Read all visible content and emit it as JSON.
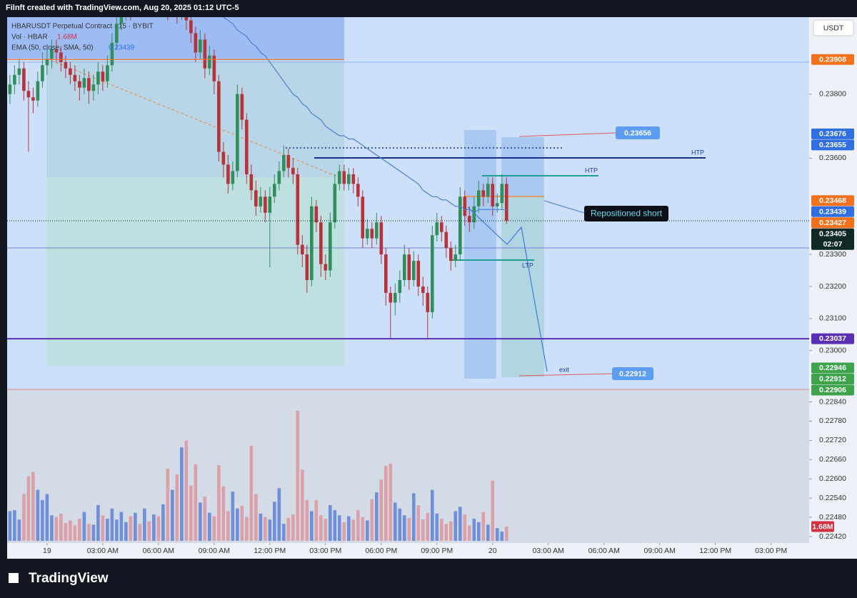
{
  "header": "Filnft created with TradingView.com, Aug 20, 2025 01:12 UTC-5",
  "footer_brand": "TradingView",
  "annotations": {
    "target_top": "0.23656",
    "target_bottom": "0.22912",
    "note": "Repositioned short",
    "htp_1": "HTP",
    "htp_2": "HTP",
    "ltp": "LTP",
    "exit": "exit"
  },
  "chart_data": {
    "type": "candlestick",
    "legend": {
      "symbol": "HBARUSDT Perpetual Contract · 15 · BYBIT",
      "volume": "Vol · HBAR",
      "ema": "EMA (50, close, SMA, 50)",
      "ema_value": "0.23439"
    },
    "currency": "USDT",
    "up_color": "#2f8f5b",
    "down_color": "#b8323a",
    "grid": false,
    "open": [
      0.238,
      0.2383,
      0.2386,
      0.2388,
      0.2381,
      0.2379,
      0.2378,
      0.2384,
      0.2389,
      0.2391,
      0.2394,
      0.2393,
      0.239,
      0.2388,
      0.2386,
      0.2384,
      0.2382,
      0.2385,
      0.2381,
      0.2383,
      0.2387,
      0.2384,
      0.2389,
      0.2396,
      0.2402,
      0.2405,
      0.2408,
      0.2406,
      0.241,
      0.2408,
      0.2412,
      0.2409,
      0.2411,
      0.2407,
      0.241,
      0.2406,
      0.2409,
      0.2405,
      0.2407,
      0.2403,
      0.2399,
      0.2393,
      0.2397,
      0.2388,
      0.2392,
      0.2384,
      0.2362,
      0.2358,
      0.2352,
      0.2356,
      0.238,
      0.2372,
      0.2355,
      0.235,
      0.2345,
      0.2348,
      0.2343,
      0.2348,
      0.2352,
      0.2356,
      0.2361,
      0.2357,
      0.2355,
      0.2333,
      0.233,
      0.2322,
      0.2345,
      0.234,
      0.2327,
      0.2325,
      0.234,
      0.2352,
      0.2356,
      0.2352,
      0.2355,
      0.2352,
      0.2348,
      0.2335,
      0.2338,
      0.2335,
      0.234,
      0.233,
      0.2318,
      0.2315,
      0.2318,
      0.2322,
      0.233,
      0.2322,
      0.2328,
      0.232,
      0.2318,
      0.2312,
      0.2336,
      0.234,
      0.2337,
      0.2332,
      0.2328,
      0.233,
      0.2348,
      0.2342,
      0.234,
      0.2345,
      0.235,
      0.2348,
      0.2352,
      0.2345,
      0.2346,
      0.2352
    ],
    "high": [
      0.2386,
      0.2389,
      0.2391,
      0.239,
      0.2384,
      0.2382,
      0.2387,
      0.2393,
      0.2394,
      0.2397,
      0.2397,
      0.2395,
      0.2392,
      0.239,
      0.2389,
      0.2386,
      0.2388,
      0.2387,
      0.2386,
      0.239,
      0.2389,
      0.2392,
      0.2399,
      0.2405,
      0.2408,
      0.2411,
      0.241,
      0.2413,
      0.2412,
      0.2415,
      0.2414,
      0.2414,
      0.2413,
      0.2413,
      0.2412,
      0.2412,
      0.2411,
      0.241,
      0.2409,
      0.2405,
      0.2401,
      0.24,
      0.2399,
      0.2395,
      0.2394,
      0.2386,
      0.2365,
      0.2361,
      0.2359,
      0.2383,
      0.2382,
      0.2374,
      0.2358,
      0.2353,
      0.2351,
      0.235,
      0.2351,
      0.2355,
      0.2359,
      0.2364,
      0.2363,
      0.236,
      0.2357,
      0.2336,
      0.2333,
      0.2348,
      0.2347,
      0.2342,
      0.233,
      0.2343,
      0.2355,
      0.2358,
      0.2358,
      0.2357,
      0.2357,
      0.2354,
      0.235,
      0.2341,
      0.234,
      0.2343,
      0.2342,
      0.2332,
      0.232,
      0.2321,
      0.2325,
      0.2333,
      0.2332,
      0.2331,
      0.233,
      0.2323,
      0.232,
      0.2339,
      0.2343,
      0.2342,
      0.2339,
      0.2334,
      0.2333,
      0.2351,
      0.235,
      0.2345,
      0.2348,
      0.2353,
      0.2352,
      0.2354,
      0.2354,
      0.2349,
      0.2355,
      0.2354
    ],
    "low": [
      0.2377,
      0.238,
      0.2383,
      0.2378,
      0.2362,
      0.2374,
      0.2376,
      0.2382,
      0.2386,
      0.2388,
      0.239,
      0.2387,
      0.2385,
      0.2383,
      0.2381,
      0.2378,
      0.238,
      0.2377,
      0.2378,
      0.238,
      0.2381,
      0.2382,
      0.2387,
      0.2394,
      0.24,
      0.2403,
      0.2403,
      0.2404,
      0.2405,
      0.2406,
      0.2406,
      0.2407,
      0.2404,
      0.2405,
      0.2403,
      0.2404,
      0.2402,
      0.2403,
      0.24,
      0.2396,
      0.239,
      0.2391,
      0.2385,
      0.2386,
      0.238,
      0.2359,
      0.2354,
      0.2349,
      0.235,
      0.2354,
      0.2369,
      0.2352,
      0.2347,
      0.2342,
      0.2343,
      0.234,
      0.2326,
      0.2346,
      0.235,
      0.2354,
      0.2354,
      0.2352,
      0.233,
      0.2326,
      0.2318,
      0.232,
      0.2337,
      0.2323,
      0.2322,
      0.2323,
      0.2338,
      0.235,
      0.235,
      0.235,
      0.2349,
      0.2345,
      0.2332,
      0.2333,
      0.2332,
      0.2333,
      0.2327,
      0.2314,
      0.2304,
      0.2311,
      0.2315,
      0.232,
      0.2319,
      0.232,
      0.2317,
      0.2314,
      0.2304,
      0.231,
      0.2334,
      0.2334,
      0.2329,
      0.2325,
      0.2326,
      0.2328,
      0.2339,
      0.2337,
      0.2338,
      0.2343,
      0.2345,
      0.2346,
      0.2342,
      0.2343,
      0.2344,
      0.23395
    ],
    "close": [
      0.2383,
      0.2386,
      0.2388,
      0.2381,
      0.2379,
      0.2378,
      0.2384,
      0.2389,
      0.2391,
      0.2394,
      0.2393,
      0.239,
      0.2388,
      0.2386,
      0.2384,
      0.2382,
      0.2385,
      0.2381,
      0.2383,
      0.2387,
      0.2384,
      0.2389,
      0.2396,
      0.2402,
      0.2405,
      0.2408,
      0.2406,
      0.241,
      0.2408,
      0.2412,
      0.2409,
      0.2411,
      0.2407,
      0.241,
      0.2406,
      0.2409,
      0.2405,
      0.2407,
      0.2403,
      0.2399,
      0.2393,
      0.2397,
      0.2388,
      0.2392,
      0.2384,
      0.2362,
      0.2358,
      0.2352,
      0.2356,
      0.238,
      0.2372,
      0.2355,
      0.235,
      0.2345,
      0.2348,
      0.2343,
      0.2348,
      0.2352,
      0.2356,
      0.2361,
      0.2357,
      0.2355,
      0.2333,
      0.233,
      0.2322,
      0.2345,
      0.234,
      0.2327,
      0.2325,
      0.234,
      0.2352,
      0.2356,
      0.2352,
      0.2355,
      0.2352,
      0.2348,
      0.2335,
      0.2338,
      0.2335,
      0.234,
      0.233,
      0.2318,
      0.2315,
      0.2318,
      0.2322,
      0.233,
      0.2322,
      0.2328,
      0.232,
      0.2318,
      0.2312,
      0.2336,
      0.234,
      0.2337,
      0.2332,
      0.2328,
      0.233,
      0.2348,
      0.2342,
      0.234,
      0.2345,
      0.235,
      0.2348,
      0.2352,
      0.2345,
      0.2346,
      0.2352,
      0.23405
    ],
    "ema": {
      "color": "#4a7fd4",
      "values": [
        null,
        null,
        null,
        null,
        null,
        null,
        null,
        null,
        null,
        null,
        null,
        null,
        null,
        null,
        null,
        null,
        null,
        null,
        null,
        null,
        null,
        null,
        null,
        null,
        null,
        null,
        null,
        null,
        null,
        null,
        null,
        null,
        null,
        null,
        null,
        null,
        null,
        null,
        null,
        null,
        null,
        null,
        null,
        null,
        null,
        null,
        0.2404,
        0.2403,
        0.2402,
        0.24,
        0.2399,
        0.2398,
        0.2396,
        0.2395,
        0.2393,
        0.2392,
        0.239,
        0.2388,
        0.2386,
        0.2384,
        0.2382,
        0.238,
        0.2379,
        0.2377,
        0.2376,
        0.2374,
        0.2373,
        0.2372,
        0.237,
        0.2369,
        0.2368,
        0.2367,
        0.2367,
        0.2366,
        0.2366,
        0.2365,
        0.2364,
        0.2363,
        0.2362,
        0.2361,
        0.236,
        0.2359,
        0.2358,
        0.2357,
        0.2356,
        0.2355,
        0.2354,
        0.2353,
        0.2352,
        0.235,
        0.2349,
        0.2348,
        0.2348,
        0.2347,
        0.2347,
        0.2346,
        0.2345,
        0.2345,
        0.2344,
        0.2344,
        0.2343,
        0.2344,
        0.2344,
        0.2344,
        0.2344,
        0.2344,
        0.2344,
        0.23439
      ]
    },
    "volume": {
      "up_color": "#6f8fd8",
      "down_color": "#dca0a8",
      "last_label": "1.68M",
      "last_color": "#d32f3f",
      "vlim": [
        0,
        20
      ],
      "values": [
        3.5,
        3.6,
        2.5,
        5.5,
        7.6,
        8.1,
        6.0,
        4.8,
        5.5,
        3.0,
        2.8,
        3.2,
        2.1,
        2.4,
        1.8,
        2.6,
        3.4,
        2.0,
        1.9,
        4.2,
        3.0,
        2.6,
        3.8,
        2.5,
        3.4,
        2.2,
        2.9,
        3.3,
        2.0,
        3.8,
        2.3,
        3.1,
        2.9,
        4.3,
        8.5,
        6.0,
        7.8,
        11.0,
        11.8,
        6.5,
        9.0,
        4.5,
        5.2,
        3.3,
        2.9,
        8.9,
        6.4,
        3.5,
        5.8,
        3.8,
        4.1,
        2.8,
        11.2,
        5.5,
        3.2,
        2.8,
        2.5,
        4.6,
        6.2,
        2.0,
        2.7,
        3.1,
        15.3,
        8.4,
        4.8,
        3.5,
        4.8,
        3.0,
        2.6,
        4.2,
        3.6,
        3.0,
        2.2,
        2.9,
        2.5,
        3.6,
        2.8,
        2.4,
        4.9,
        5.7,
        7.2,
        8.8,
        9.1,
        4.5,
        3.8,
        3.0,
        2.7,
        5.6,
        4.2,
        2.5,
        3.3,
        6.0,
        3.2,
        2.6,
        2.0,
        2.3,
        3.5,
        4.0,
        3.1,
        1.8,
        2.6,
        2.2,
        3.4,
        1.9,
        7.1,
        1.5,
        1.1,
        1.68
      ]
    },
    "xlim": [
      -0.6,
      172.2
    ],
    "xticks": [
      {
        "value": 8,
        "label": "19"
      },
      {
        "value": 20,
        "label": "03:00 AM"
      },
      {
        "value": 32,
        "label": "06:00 AM"
      },
      {
        "value": 44,
        "label": "09:00 AM"
      },
      {
        "value": 56,
        "label": "12:00 PM"
      },
      {
        "value": 68,
        "label": "03:00 PM"
      },
      {
        "value": 80,
        "label": "06:00 PM"
      },
      {
        "value": 92,
        "label": "09:00 PM"
      },
      {
        "value": 104,
        "label": "20"
      },
      {
        "value": 116,
        "label": "03:00 AM"
      },
      {
        "value": 128,
        "label": "06:00 AM"
      },
      {
        "value": 140,
        "label": "09:00 AM"
      },
      {
        "value": 152,
        "label": "12:00 PM"
      },
      {
        "value": 164,
        "label": "03:00 PM"
      }
    ],
    "ylim": [
      0.224,
      0.2404
    ],
    "yticks": [
      {
        "value": 0.238,
        "label": "0.23800"
      },
      {
        "value": 0.236,
        "label": "0.23600"
      },
      {
        "value": 0.233,
        "label": "0.23300"
      },
      {
        "value": 0.232,
        "label": "0.23200"
      },
      {
        "value": 0.231,
        "label": "0.23100"
      },
      {
        "value": 0.23,
        "label": "0.23000"
      },
      {
        "value": 0.2284,
        "label": "0.22840"
      },
      {
        "value": 0.2278,
        "label": "0.22780"
      },
      {
        "value": 0.2272,
        "label": "0.22720"
      },
      {
        "value": 0.2266,
        "label": "0.22660"
      },
      {
        "value": 0.226,
        "label": "0.22600"
      },
      {
        "value": 0.2254,
        "label": "0.22540"
      },
      {
        "value": 0.2248,
        "label": "0.22480"
      },
      {
        "value": 0.2242,
        "label": "0.22420"
      }
    ],
    "price_tags": [
      {
        "value": 0.23908,
        "label": "0.23908",
        "color": "#f2711c"
      },
      {
        "value": 0.23676,
        "label": "0.23676",
        "color": "#2f6fe0"
      },
      {
        "value": 0.23655,
        "label": "0.23655",
        "color": "#2f6fe0"
      },
      {
        "value": 0.23468,
        "label": "0.23468",
        "color": "#f2711c"
      },
      {
        "value": 0.23439,
        "label": "0.23439",
        "color": "#2f6fe0"
      },
      {
        "value": 0.23427,
        "label": "0.23427",
        "color": "#f2711c"
      },
      {
        "value": 0.23405,
        "label": "0.23405",
        "color": "#0f2a24",
        "countdown": "02:07"
      },
      {
        "value": 0.23037,
        "label": "0.23037",
        "color": "#5a2fb5"
      },
      {
        "value": 0.22946,
        "label": "0.22946",
        "color": "#3fa34d"
      },
      {
        "value": 0.22912,
        "label": "0.22912",
        "color": "#3fa34d"
      },
      {
        "value": 0.22906,
        "label": "0.22906",
        "color": "#3fa34d"
      }
    ]
  }
}
